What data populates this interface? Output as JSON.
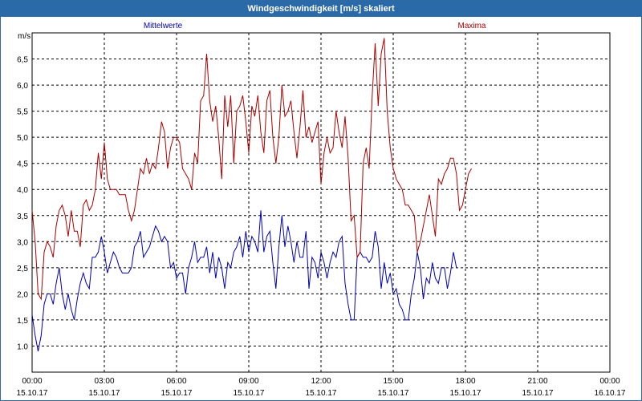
{
  "window": {
    "title": "Windgeschwindigkeit [m/s] skaliert"
  },
  "colors": {
    "mean": "#0000b4",
    "max": "#aa0000",
    "grid": "#000000",
    "titlebar": "#2b6aa8"
  },
  "chart_data": {
    "type": "line",
    "title": "Windgeschwindigkeit [m/s] skaliert",
    "ylabel": "m/s",
    "xlabel": "",
    "ylim": [
      0.5,
      7.0
    ],
    "xlim": [
      0,
      24
    ],
    "grid": true,
    "yticks": [
      "1.0",
      "1,5",
      "2,0",
      "2,5",
      "3,0",
      "3,5",
      "4,0",
      "4,5",
      "5,0",
      "5,5",
      "6,0",
      "6,5"
    ],
    "yticks_values": [
      1.0,
      1.5,
      2.0,
      2.5,
      3.0,
      3.5,
      4.0,
      4.5,
      5.0,
      5.5,
      6.0,
      6.5
    ],
    "xticks": [
      {
        "time": "00:00",
        "date": "15.10.17"
      },
      {
        "time": "03:00",
        "date": "15.10.17"
      },
      {
        "time": "06:00",
        "date": "15.10.17"
      },
      {
        "time": "09:00",
        "date": "15.10.17"
      },
      {
        "time": "12:00",
        "date": "15.10.17"
      },
      {
        "time": "15:00",
        "date": "15.10.17"
      },
      {
        "time": "18:00",
        "date": "15.10.17"
      },
      {
        "time": "21:00",
        "date": "15.10.17"
      },
      {
        "time": "00:00",
        "date": "16.10.17"
      }
    ],
    "series": [
      {
        "name": "Mittelwerte",
        "color": "#0000b4",
        "step_hours": 0.125,
        "values": [
          1.6,
          1.2,
          0.9,
          1.2,
          1.8,
          2.0,
          2.0,
          1.8,
          2.2,
          2.5,
          2.0,
          1.7,
          2.0,
          1.7,
          1.5,
          1.9,
          2.2,
          2.4,
          2.2,
          2.1,
          2.7,
          2.7,
          2.8,
          3.1,
          2.8,
          2.4,
          2.6,
          2.8,
          2.7,
          2.5,
          2.4,
          2.4,
          2.4,
          2.5,
          2.9,
          3.0,
          3.2,
          2.7,
          2.8,
          2.9,
          3.1,
          3.3,
          3.2,
          3.0,
          3.1,
          3.0,
          2.5,
          2.6,
          2.3,
          2.4,
          2.4,
          2.0,
          2.5,
          2.7,
          3.0,
          2.6,
          2.7,
          2.7,
          2.9,
          2.4,
          2.8,
          2.3,
          2.7,
          2.5,
          2.1,
          2.6,
          2.5,
          2.8,
          2.9,
          3.1,
          2.7,
          3.2,
          2.8,
          3.1,
          3.0,
          2.8,
          3.6,
          2.8,
          3.1,
          3.2,
          2.6,
          2.1,
          2.9,
          3.5,
          2.9,
          3.3,
          3.0,
          2.6,
          3.0,
          2.7,
          2.7,
          3.2,
          2.1,
          2.7,
          2.6,
          2.3,
          2.8,
          2.6,
          2.3,
          2.6,
          2.8,
          2.7,
          3.0,
          3.1,
          2.2,
          1.8,
          1.5,
          1.5,
          2.7,
          2.8,
          2.7,
          2.7,
          2.6,
          2.7,
          3.2,
          2.9,
          2.1,
          2.6,
          2.2,
          2.4,
          2.0,
          2.1,
          1.8,
          1.7,
          1.5,
          1.5,
          2.0,
          2.3,
          2.8,
          2.5,
          1.9,
          2.3,
          2.2,
          2.6,
          2.3,
          2.2,
          2.5,
          2.5,
          2.1,
          2.4,
          2.8,
          2.5
        ]
      },
      {
        "name": "Maxima",
        "color": "#aa0000",
        "step_hours": 0.125,
        "values": [
          3.6,
          3.0,
          2.0,
          1.9,
          2.8,
          3.0,
          2.9,
          2.7,
          3.3,
          3.6,
          3.7,
          3.5,
          3.1,
          3.6,
          3.2,
          3.2,
          2.9,
          3.7,
          3.8,
          3.6,
          3.7,
          4.0,
          4.7,
          4.2,
          4.9,
          4.2,
          4.0,
          4.0,
          4.0,
          3.9,
          3.9,
          3.9,
          3.6,
          3.4,
          3.6,
          4.0,
          4.4,
          4.3,
          4.6,
          4.3,
          4.5,
          4.4,
          4.8,
          5.3,
          5.1,
          4.4,
          4.8,
          5.0,
          5.0,
          4.9,
          4.4,
          4.3,
          4.2,
          4.0,
          4.7,
          4.5,
          5.7,
          5.8,
          6.6,
          5.7,
          5.3,
          5.6,
          5.0,
          4.2,
          5.8,
          5.2,
          5.8,
          4.5,
          5.5,
          5.6,
          5.8,
          5.3,
          4.7,
          5.6,
          5.4,
          5.8,
          5.1,
          4.7,
          5.7,
          5.9,
          5.0,
          4.5,
          5.0,
          6.0,
          5.4,
          5.5,
          5.7,
          5.1,
          4.6,
          5.2,
          5.9,
          5.0,
          5.2,
          4.9,
          5.1,
          5.3,
          4.1,
          4.7,
          5.0,
          4.7,
          4.8,
          5.5,
          5.1,
          4.8,
          5.4,
          4.6,
          3.4,
          3.5,
          2.7,
          2.8,
          4.5,
          4.8,
          4.4,
          5.8,
          6.8,
          5.6,
          6.6,
          6.9,
          5.5,
          4.8,
          4.4,
          4.2,
          4.1,
          4.0,
          3.7,
          3.7,
          3.6,
          3.5,
          2.8,
          3.0,
          3.3,
          3.6,
          3.9,
          3.5,
          3.1,
          4.2,
          4.1,
          4.3,
          4.4,
          4.6,
          4.6,
          4.3,
          3.6,
          3.7,
          4.0,
          4.3,
          4.4
        ]
      }
    ]
  }
}
